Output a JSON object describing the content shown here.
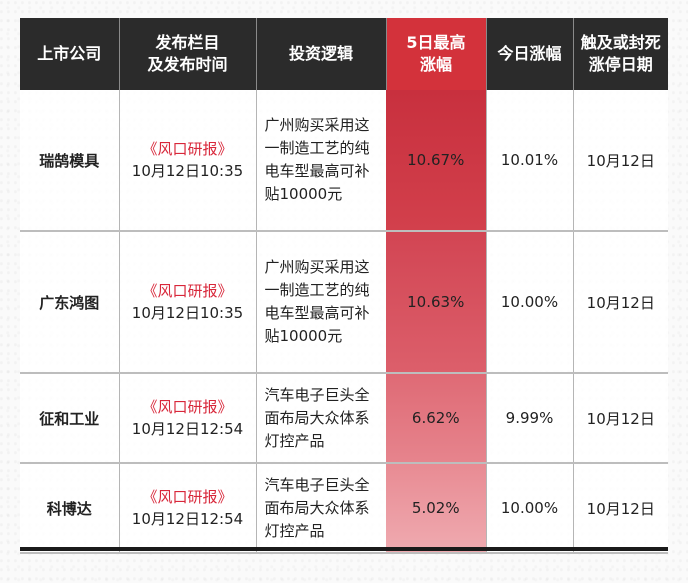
{
  "headers": {
    "company": "上市公司",
    "column_time": "发布栏目\n及发布时间",
    "logic": "投资逻辑",
    "max_gain": "5日最高\n涨幅",
    "today_gain": "今日涨幅",
    "limit_date": "触及或封死\n涨停日期"
  },
  "rows": [
    {
      "company": "瑞鹄模具",
      "column": "《风口研报》",
      "time": "10月12日10:35",
      "logic": "广州购买采用这一制造工艺的纯电车型最高可补贴10000元",
      "max_gain": "10.67%",
      "today_gain": "10.01%",
      "limit_date": "10月12日"
    },
    {
      "company": "广东鸿图",
      "column": "《风口研报》",
      "time": "10月12日10:35",
      "logic": "广州购买采用这一制造工艺的纯电车型最高可补贴10000元",
      "max_gain": "10.63%",
      "today_gain": "10.00%",
      "limit_date": "10月12日"
    },
    {
      "company": "征和工业",
      "column": "《风口研报》",
      "time": "10月12日12:54",
      "logic": "汽车电子巨头全面布局大众体系灯控产品",
      "max_gain": "6.62%",
      "today_gain": "9.99%",
      "limit_date": "10月12日"
    },
    {
      "company": "科博达",
      "column": "《风口研报》",
      "time": "10月12日12:54",
      "logic": "汽车电子巨头全面布局大众体系灯控产品",
      "max_gain": "5.02%",
      "today_gain": "10.00%",
      "limit_date": "10月12日"
    }
  ],
  "colors": {
    "header_bg": "#2b2b2b",
    "highlight_header": "#d3323b",
    "link_red": "#d8273a"
  }
}
